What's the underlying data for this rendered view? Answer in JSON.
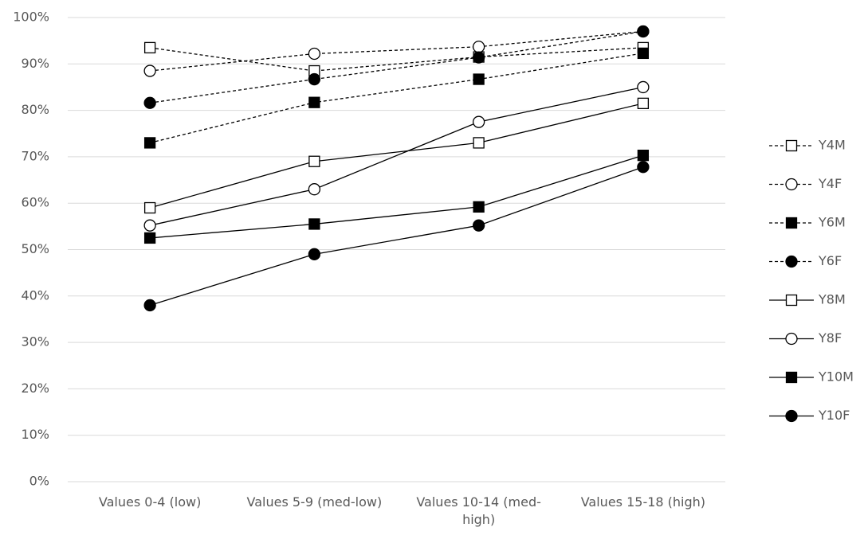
{
  "chart_data": {
    "type": "line",
    "categories": [
      "Values 0-4 (low)",
      "Values 5-9 (med-low)",
      "Values 10-14 (med-high)",
      "Values 15-18 (high)"
    ],
    "series": [
      {
        "name": "Y4M",
        "color": "#000000",
        "dash": true,
        "marker": "square",
        "filled": false,
        "values": [
          93.5,
          88.5,
          91.5,
          93.5
        ]
      },
      {
        "name": "Y4F",
        "color": "#000000",
        "dash": true,
        "marker": "circle",
        "filled": false,
        "values": [
          88.5,
          92.2,
          93.7,
          97
        ]
      },
      {
        "name": "Y6M",
        "color": "#000000",
        "dash": true,
        "marker": "square",
        "filled": true,
        "values": [
          73,
          81.7,
          86.7,
          92.3
        ]
      },
      {
        "name": "Y6F",
        "color": "#000000",
        "dash": true,
        "marker": "circle",
        "filled": true,
        "values": [
          81.6,
          86.7,
          91.4,
          97
        ]
      },
      {
        "name": "Y8M",
        "color": "#000000",
        "dash": false,
        "marker": "square",
        "filled": false,
        "values": [
          59,
          69,
          73,
          81.5
        ]
      },
      {
        "name": "Y8F",
        "color": "#000000",
        "dash": false,
        "marker": "circle",
        "filled": false,
        "values": [
          55.2,
          63,
          77.5,
          85
        ]
      },
      {
        "name": "Y10M",
        "color": "#000000",
        "dash": false,
        "marker": "square",
        "filled": true,
        "values": [
          52.5,
          55.5,
          59.2,
          70.3
        ]
      },
      {
        "name": "Y10F",
        "color": "#000000",
        "dash": false,
        "marker": "circle",
        "filled": true,
        "values": [
          38,
          49,
          55.2,
          67.8
        ]
      }
    ],
    "ylim": [
      0,
      100
    ],
    "yticks": [
      {
        "value": 0,
        "label": "0%"
      },
      {
        "value": 10,
        "label": "10%"
      },
      {
        "value": 20,
        "label": "20%"
      },
      {
        "value": 30,
        "label": "30%"
      },
      {
        "value": 40,
        "label": "40%"
      },
      {
        "value": 50,
        "label": "50%"
      },
      {
        "value": 60,
        "label": "60%"
      },
      {
        "value": 70,
        "label": "70%"
      },
      {
        "value": 80,
        "label": "80%"
      },
      {
        "value": 90,
        "label": "90%"
      },
      {
        "value": 100,
        "label": "100%"
      }
    ],
    "grid": true,
    "legend": "right"
  }
}
